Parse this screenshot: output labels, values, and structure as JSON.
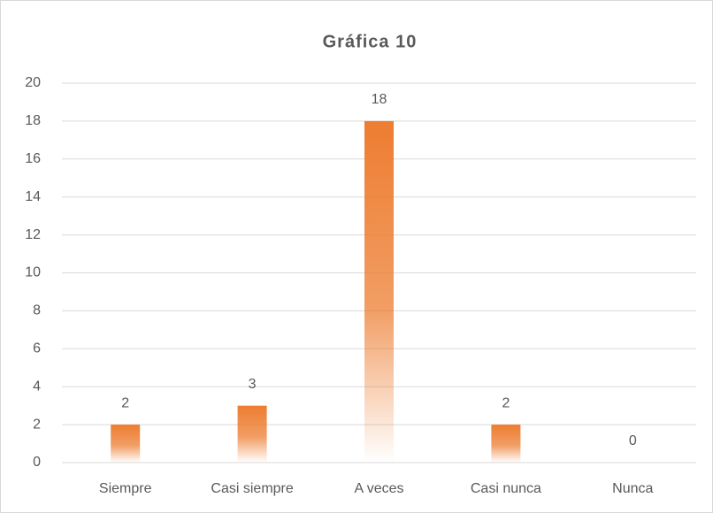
{
  "chart_data": {
    "type": "bar",
    "title": "Gráfica 10",
    "categories": [
      "Siempre",
      "Casi siempre",
      "A veces",
      "Casi nunca",
      "Nunca"
    ],
    "values": [
      2,
      3,
      18,
      2,
      0
    ],
    "color": "#ed7d31",
    "ylim": [
      0,
      20
    ],
    "yticks": [
      0,
      2,
      4,
      6,
      8,
      10,
      12,
      14,
      16,
      18,
      20
    ],
    "grid": true
  }
}
